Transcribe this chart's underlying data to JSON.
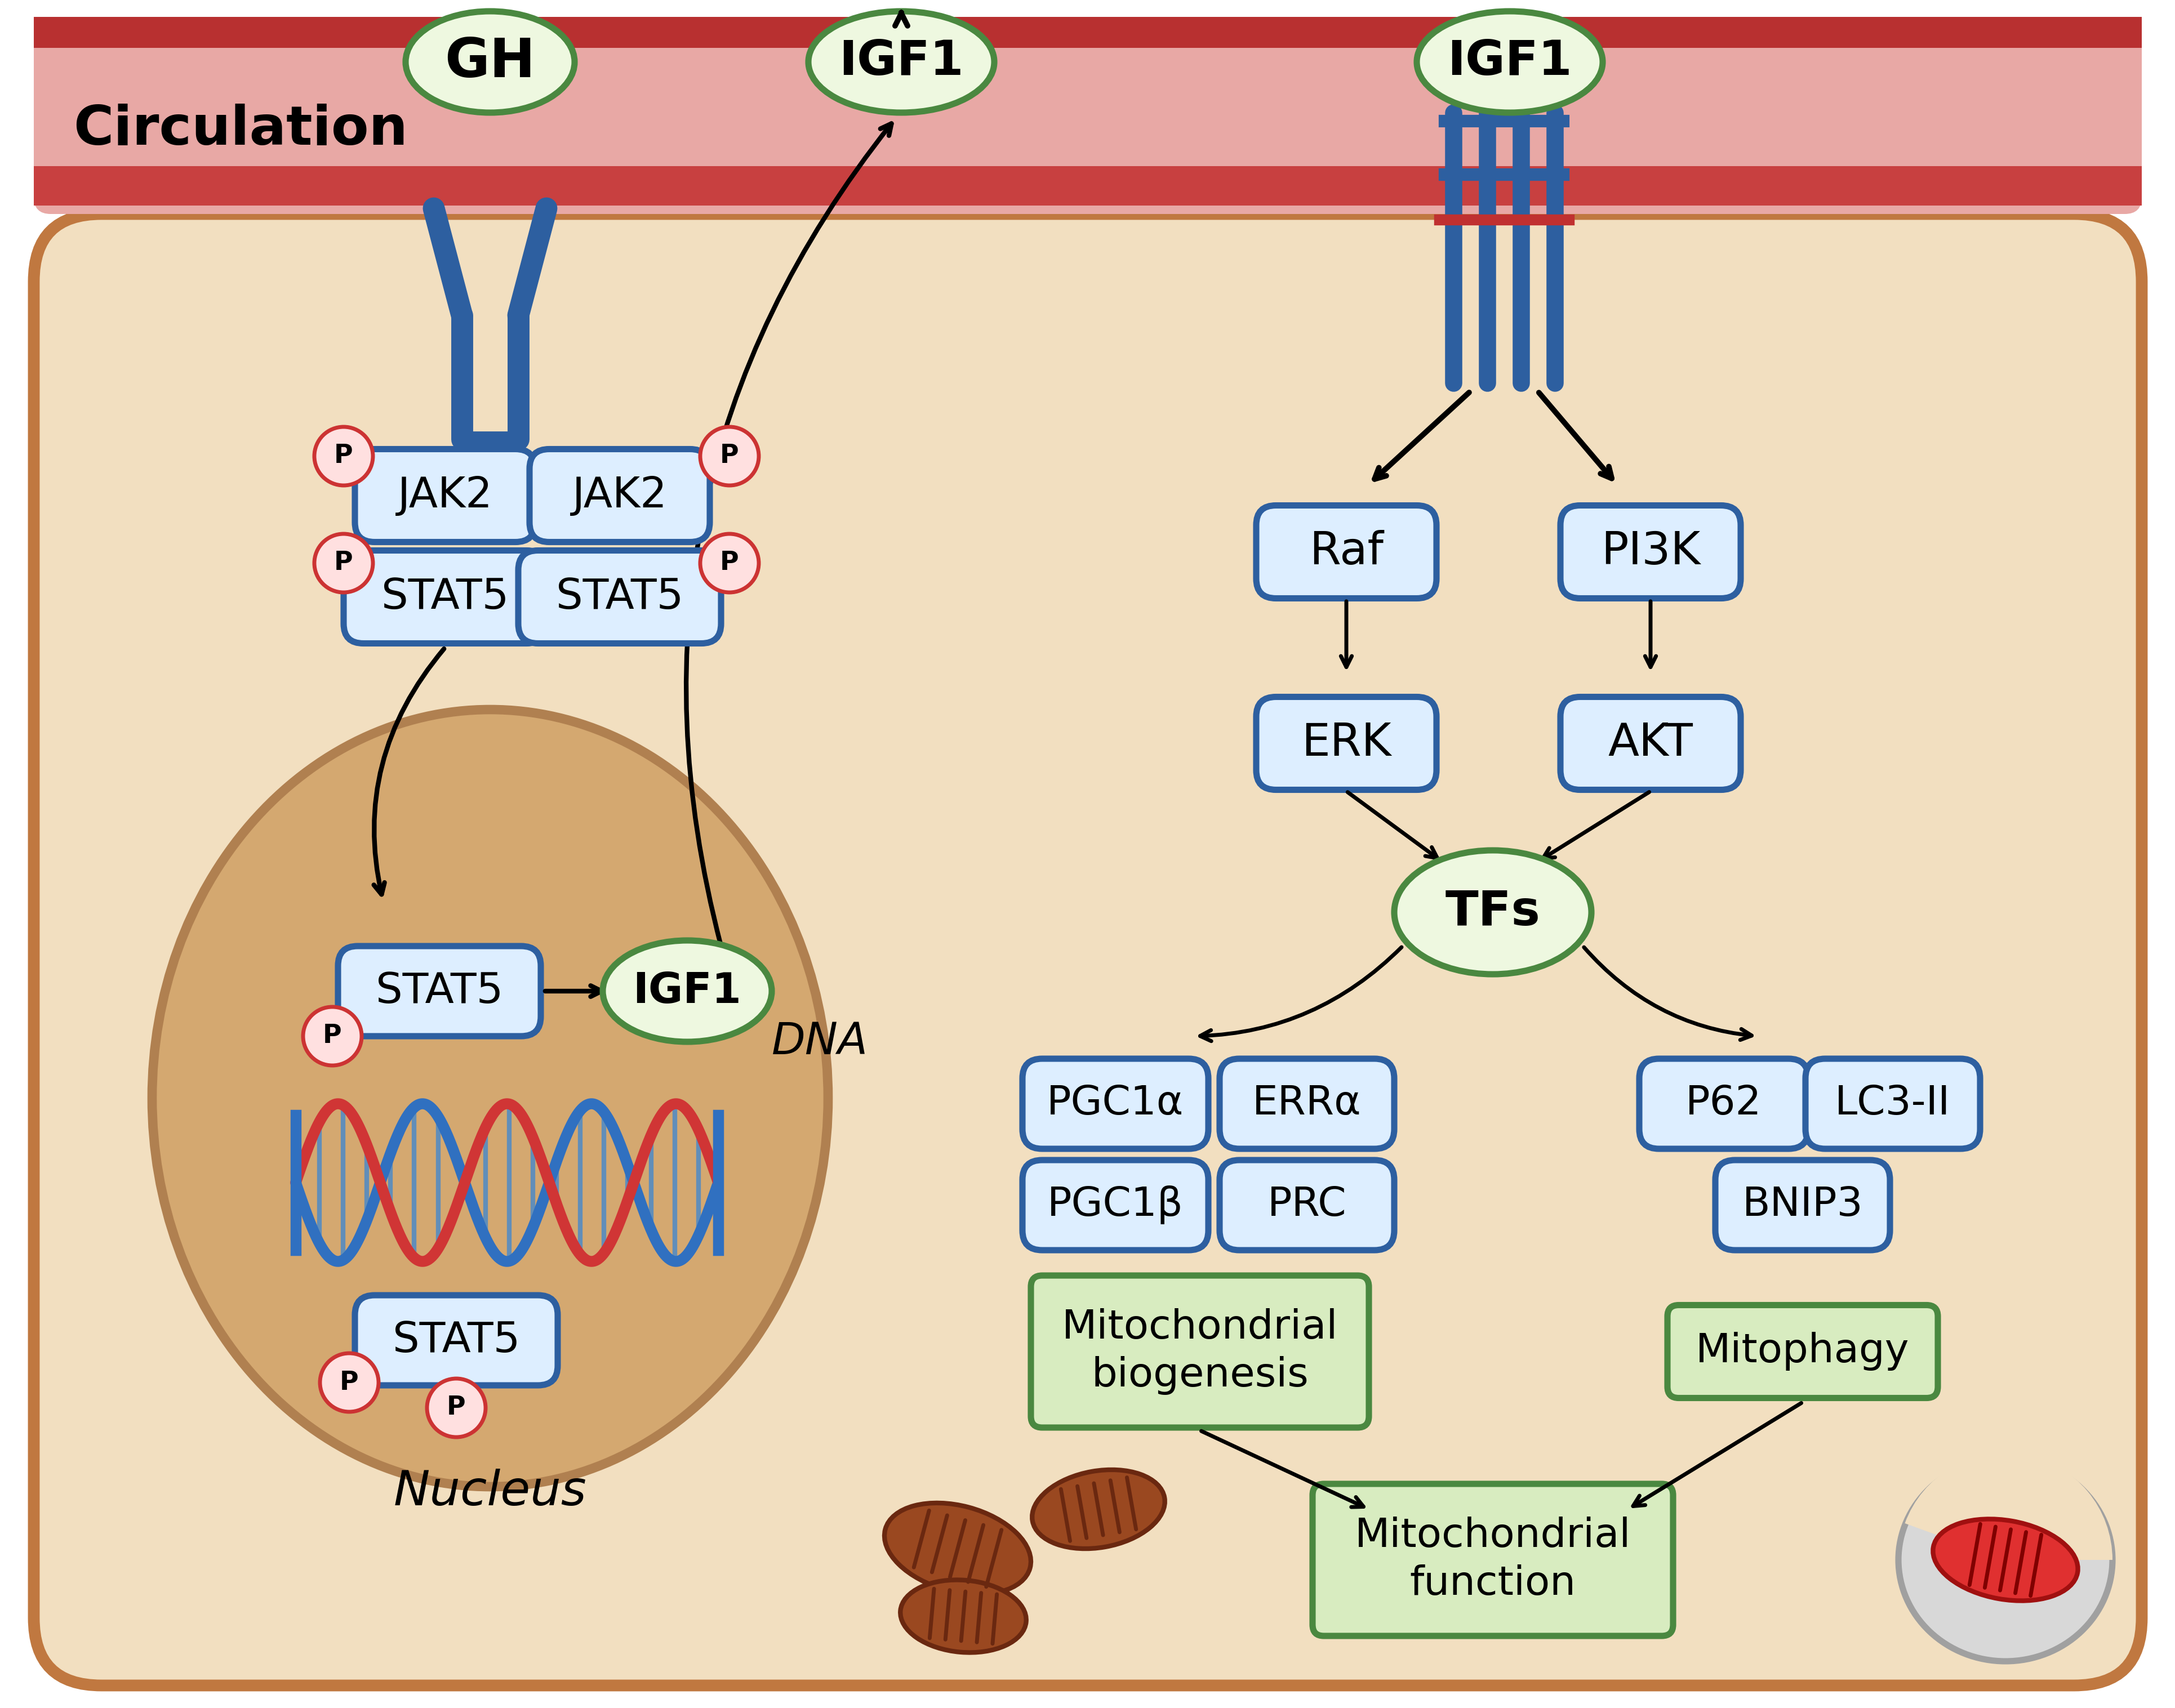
{
  "bg_color": "#ffffff",
  "circ_bg": "#e8a8a5",
  "circ_stripe_top": "#b83030",
  "circ_stripe_bot": "#c84040",
  "cell_bg": "#f2dfc0",
  "cell_border": "#c07840",
  "nucleus_bg": "#d4a870",
  "nucleus_border": "#b08050",
  "blue_fill": "#ddeeff",
  "blue_border": "#2d5fa0",
  "green_fill": "#d8ecc0",
  "green_border": "#4a8840",
  "green_oval_fill": "#eef8e0",
  "green_oval_border": "#4a8840",
  "red_P_fill": "#ffe0e0",
  "red_P_border": "#cc3333",
  "receptor_blue": "#2d5fa0",
  "dna_blue": "#3070c0",
  "dna_red": "#d03535",
  "mito_fill": "#a05030",
  "mito_dark": "#7a3018",
  "arrow_color": "#111111",
  "circulation_label": "Circulation",
  "nucleus_label": "Nucleus",
  "dna_label": "DNA"
}
